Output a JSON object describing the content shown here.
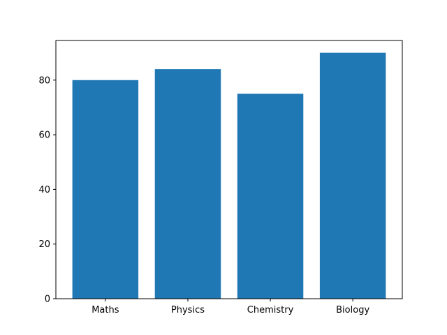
{
  "chart_data": {
    "type": "bar",
    "categories": [
      "Maths",
      "Physics",
      "Chemistry",
      "Biology"
    ],
    "values": [
      80,
      84,
      75,
      90
    ],
    "title": "",
    "xlabel": "",
    "ylabel": "",
    "ylim": [
      0,
      94.5
    ],
    "yticks": [
      0,
      20,
      40,
      60,
      80
    ],
    "grid": false,
    "bar_color": "#1f77b4"
  }
}
